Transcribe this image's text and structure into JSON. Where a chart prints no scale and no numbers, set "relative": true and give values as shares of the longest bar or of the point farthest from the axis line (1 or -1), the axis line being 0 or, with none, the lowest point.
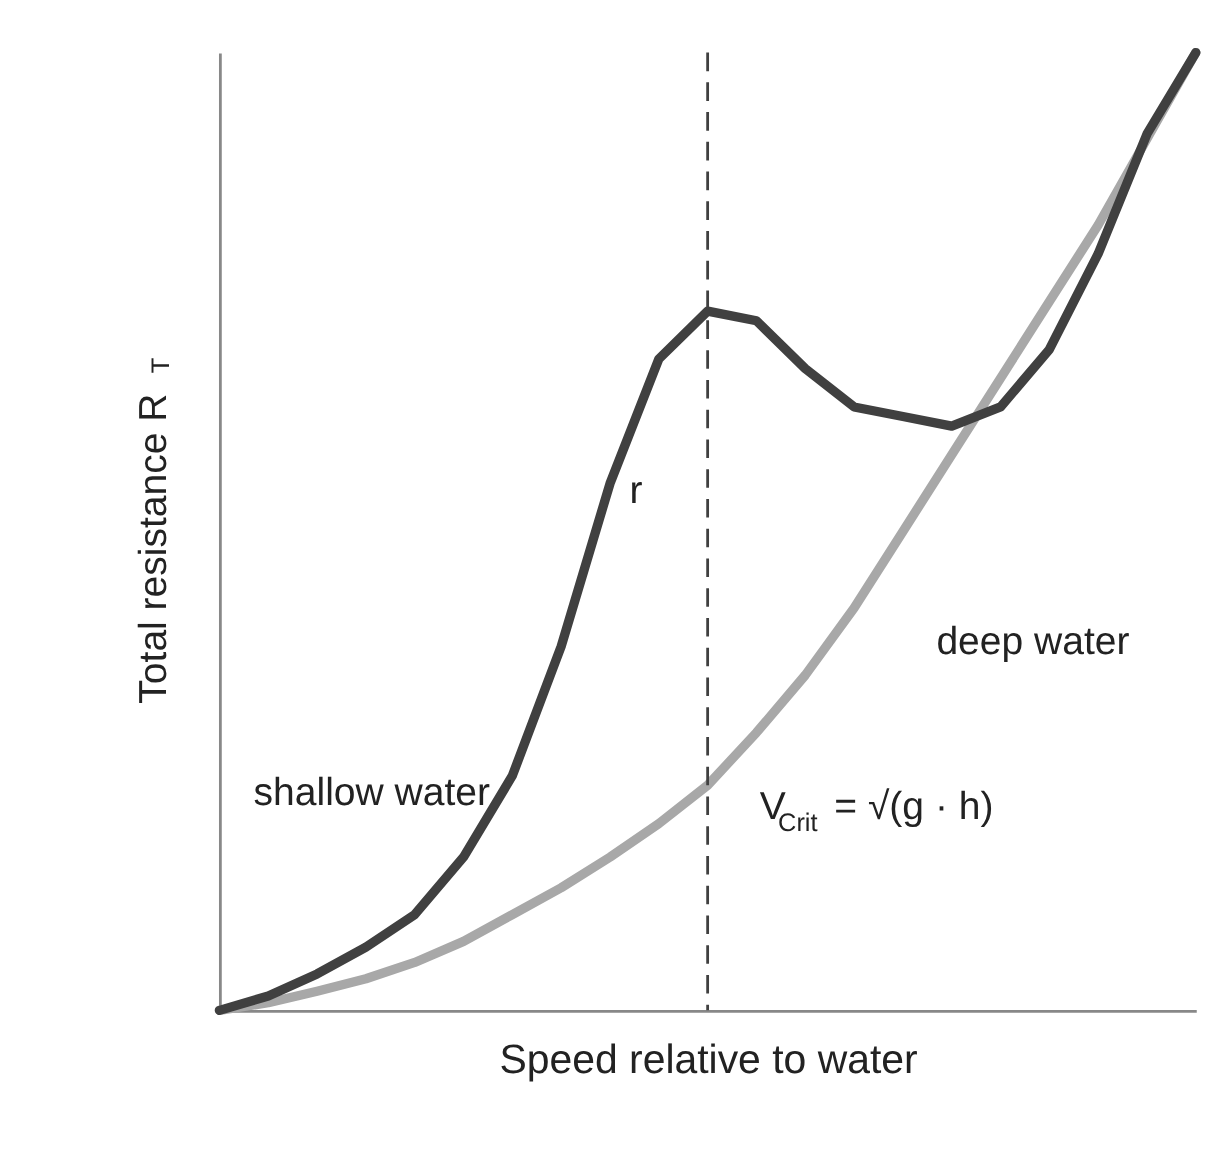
{
  "chart_data": {
    "type": "line",
    "relative": true,
    "xlabel": "Speed relative to water",
    "ylabel": "Total resistance R$_{T}$",
    "categories": [
      null,
      null,
      null,
      null,
      null,
      null,
      null,
      null,
      null,
      null,
      null,
      null,
      null,
      null,
      null,
      null,
      null,
      null,
      null,
      null,
      null
    ],
    "series": [
      {
        "name": "shallow water",
        "color": "#404040",
        "values": [
          0,
          0.015,
          0.038,
          0.066,
          0.1,
          0.16,
          0.245,
          0.38,
          0.55,
          0.68,
          0.73,
          0.72,
          0.67,
          0.63,
          0.62,
          0.61,
          0.63,
          0.69,
          0.79,
          0.915,
          1.0
        ]
      },
      {
        "name": "deep water",
        "color": "#a8a8a8",
        "values": [
          0,
          0.008,
          0.02,
          0.033,
          0.05,
          0.072,
          0.1,
          0.128,
          0.16,
          0.195,
          0.235,
          0.29,
          0.35,
          0.42,
          0.5,
          0.58,
          0.66,
          0.74,
          0.82,
          0.91,
          1.0
        ]
      }
    ],
    "line_style": "solid",
    "annotations": [
      "r",
      "V$_{Crit}$ = √(g · h)"
    ]
  }
}
